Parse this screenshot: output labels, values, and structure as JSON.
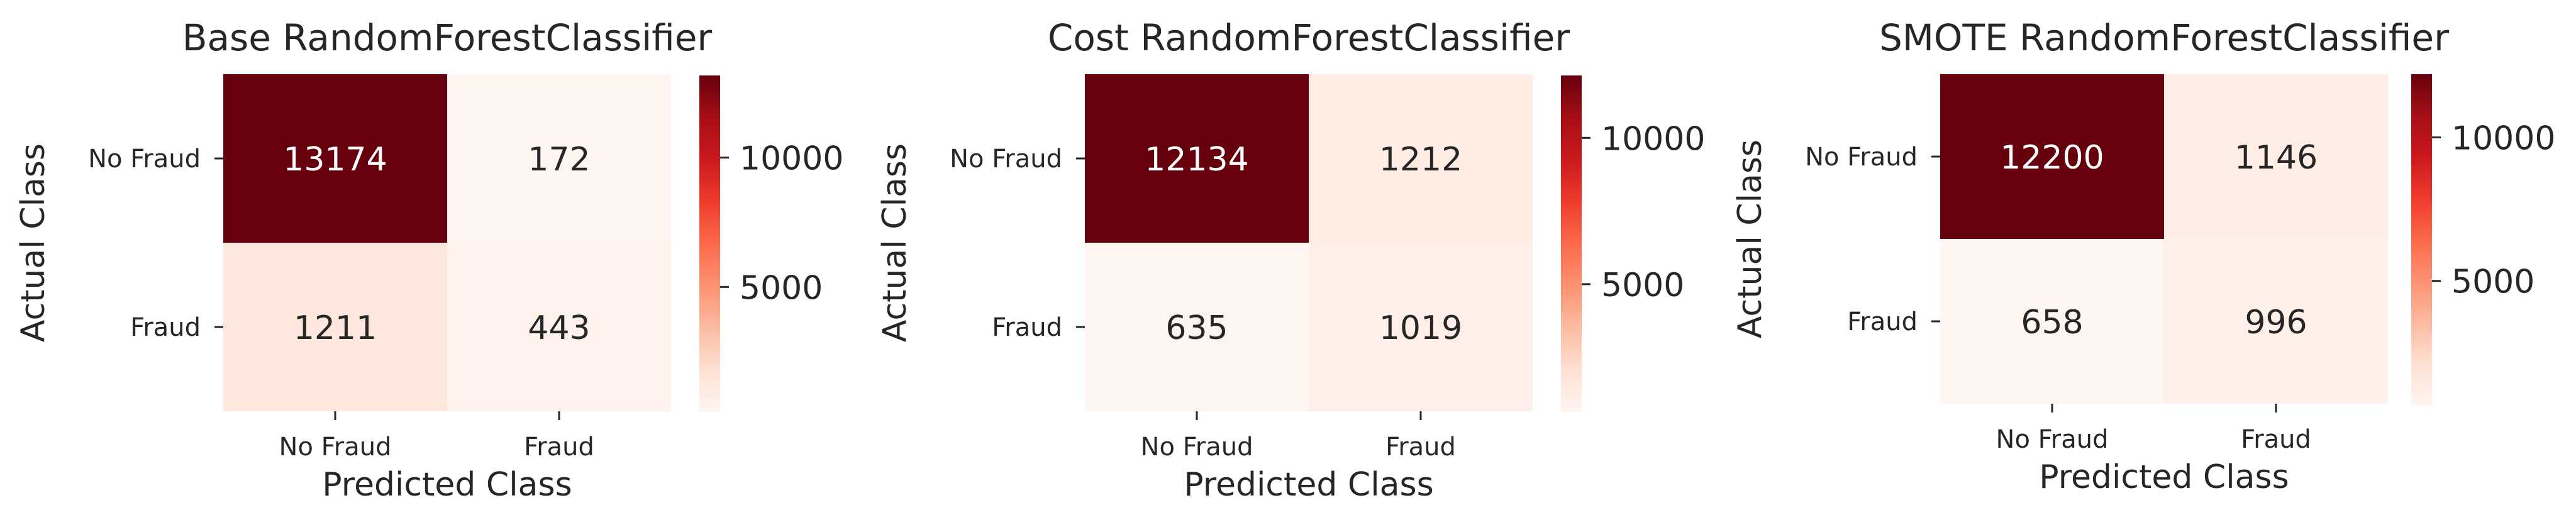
{
  "chart_data": [
    {
      "type": "heatmap",
      "title": "Base RandomForestClassifier",
      "xlabel": "Predicted Class",
      "ylabel": "Actual Class",
      "x_categories": [
        "No Fraud",
        "Fraud"
      ],
      "y_categories": [
        "No Fraud",
        "Fraud"
      ],
      "values": [
        [
          13174,
          172
        ],
        [
          1211,
          443
        ]
      ],
      "colormap": "Reds",
      "colorbar": {
        "ticks": [
          "5000",
          "10000"
        ],
        "vmin": 172,
        "vmax": 13174
      }
    },
    {
      "type": "heatmap",
      "title": "Cost RandomForestClassifier",
      "xlabel": "Predicted Class",
      "ylabel": "Actual Class",
      "x_categories": [
        "No Fraud",
        "Fraud"
      ],
      "y_categories": [
        "No Fraud",
        "Fraud"
      ],
      "values": [
        [
          12134,
          1212
        ],
        [
          635,
          1019
        ]
      ],
      "colormap": "Reds",
      "colorbar": {
        "ticks": [
          "5000",
          "10000"
        ],
        "vmin": 635,
        "vmax": 12134
      }
    },
    {
      "type": "heatmap",
      "title": "SMOTE RandomForestClassifier",
      "xlabel": "Predicted Class",
      "ylabel": "Actual Class",
      "x_categories": [
        "No Fraud",
        "Fraud"
      ],
      "y_categories": [
        "No Fraud",
        "Fraud"
      ],
      "values": [
        [
          12200,
          1146
        ],
        [
          658,
          996
        ]
      ],
      "colormap": "Reds",
      "colorbar": {
        "ticks": [
          "5000",
          "10000"
        ],
        "vmin": 658,
        "vmax": 12200
      }
    }
  ]
}
